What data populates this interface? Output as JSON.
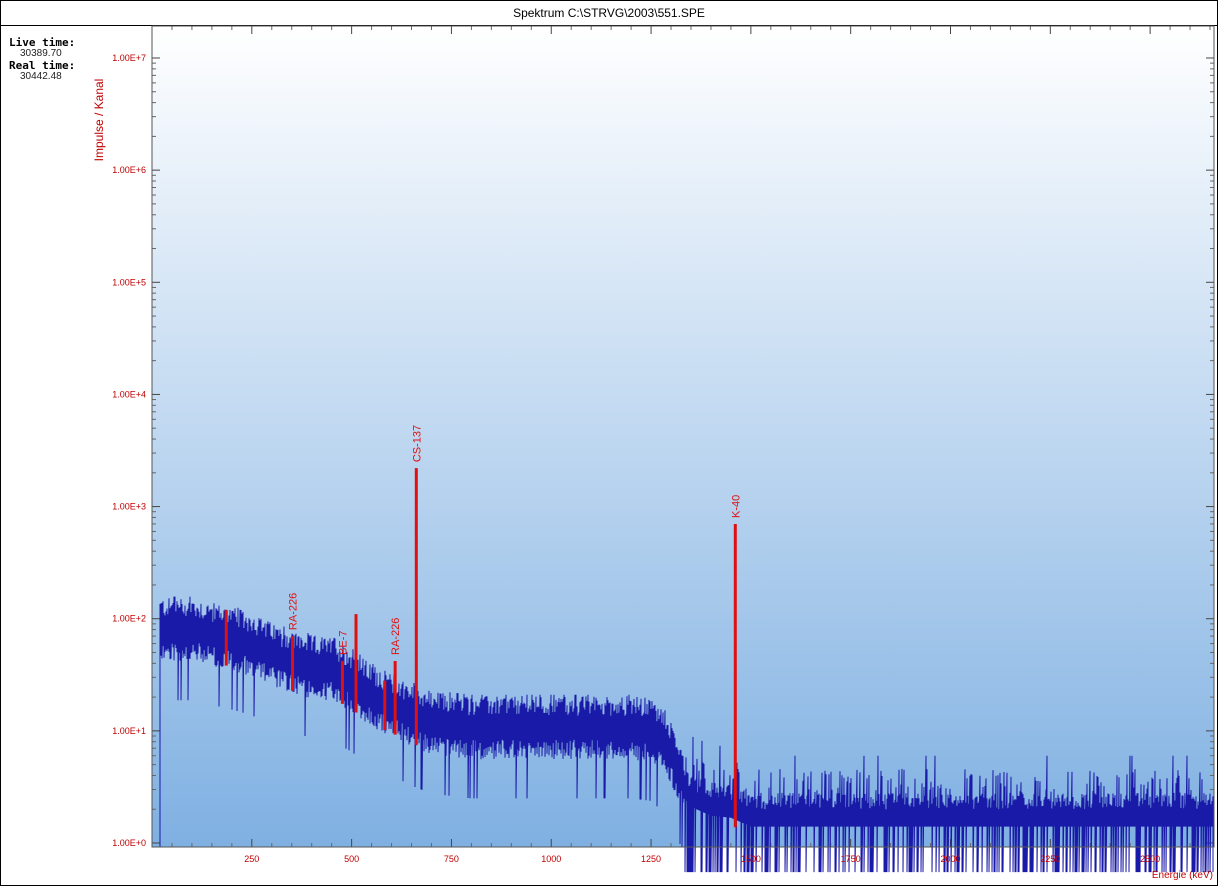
{
  "title": "Spektrum C:\\STRVG\\2003\\551.SPE",
  "info": {
    "live_label": "Live time:",
    "live_value": "30389.70",
    "real_label": "Real time:",
    "real_value": "30442.48"
  },
  "colors": {
    "spectrum": "#1a1aa8",
    "peaks": "#e01010",
    "axis_text": "#c00000",
    "bg_top": "#ffffff",
    "bg_bottom": "#7fb0e2"
  },
  "chart_data": {
    "type": "line",
    "title": "Spektrum C:\\STRVG\\2003\\551.SPE",
    "xlabel": "Energie (keV)",
    "ylabel": "Impulse / Kanal",
    "xlim": [
      0,
      2660
    ],
    "ylim": [
      1,
      10000000
    ],
    "log_y": true,
    "x_ticks": [
      250,
      500,
      750,
      1000,
      1250,
      1500,
      1750,
      2000,
      2250,
      2500
    ],
    "x_tick_labels": [
      "250",
      "500",
      "750",
      "1000",
      "1250",
      "1500",
      "1750",
      "2000",
      "2250",
      "2500"
    ],
    "y_ticks": [
      1,
      10,
      100,
      1000,
      10000,
      100000,
      1000000,
      10000000
    ],
    "y_tick_labels": [
      "1.00E+0",
      "1.00E+1",
      "1.00E+2",
      "1.00E+3",
      "1.00E+4",
      "1.00E+5",
      "1.00E+6",
      "1.00E+7"
    ],
    "continuum": [
      [
        20,
        75
      ],
      [
        100,
        75
      ],
      [
        200,
        62
      ],
      [
        250,
        55
      ],
      [
        300,
        45
      ],
      [
        350,
        38
      ],
      [
        400,
        35
      ],
      [
        450,
        33
      ],
      [
        500,
        26
      ],
      [
        550,
        19
      ],
      [
        600,
        16
      ],
      [
        650,
        13
      ],
      [
        700,
        11
      ],
      [
        800,
        10
      ],
      [
        900,
        10
      ],
      [
        1000,
        10
      ],
      [
        1100,
        10
      ],
      [
        1200,
        10
      ],
      [
        1250,
        9.5
      ],
      [
        1290,
        7
      ],
      [
        1320,
        4
      ],
      [
        1350,
        3
      ],
      [
        1400,
        2.5
      ],
      [
        1450,
        2.4
      ],
      [
        1500,
        2
      ],
      [
        2000,
        2
      ],
      [
        2500,
        2
      ],
      [
        2660,
        2
      ]
    ],
    "peaks": [
      {
        "energy": 186,
        "counts": 120,
        "label": ""
      },
      {
        "energy": 352,
        "counts": 70,
        "label": "RA-226"
      },
      {
        "energy": 477,
        "counts": 42,
        "label": "BE-7"
      },
      {
        "energy": 511,
        "counts": 110,
        "label": ""
      },
      {
        "energy": 583,
        "counts": 28,
        "label": ""
      },
      {
        "energy": 609,
        "counts": 42,
        "label": "RA-226"
      },
      {
        "energy": 662,
        "counts": 2200,
        "label": "CS-137"
      },
      {
        "energy": 1461,
        "counts": 700,
        "label": "K-40"
      }
    ]
  }
}
